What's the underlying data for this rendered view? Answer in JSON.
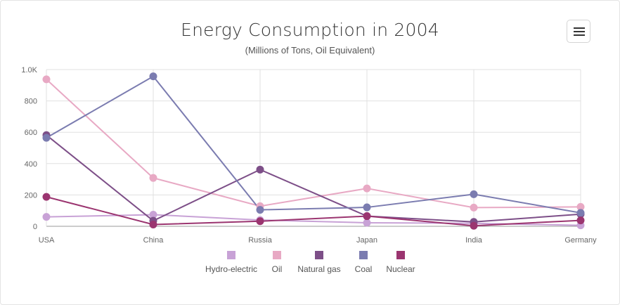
{
  "chart_data": {
    "type": "line",
    "title": "Energy Consumption in 2004",
    "subtitle": "(Millions of Tons, Oil Equivalent)",
    "categories": [
      "USA",
      "China",
      "Russia",
      "Japan",
      "India",
      "Germany"
    ],
    "ylim": [
      0,
      1000
    ],
    "yticks": [
      0,
      200,
      400,
      600,
      800,
      1000
    ],
    "ytick_labels": [
      "0",
      "200",
      "400",
      "600",
      "800",
      "1.0K"
    ],
    "xlabel": "",
    "ylabel": "",
    "grid": true,
    "legend_position": "bottom",
    "series": [
      {
        "name": "Hydro-electric",
        "color": "#c8a2d6",
        "values": [
          59.8,
          74.2,
          40,
          22.6,
          19,
          6.1
        ]
      },
      {
        "name": "Oil",
        "color": "#e8a9c4",
        "values": [
          937.6,
          308.6,
          128.5,
          241.5,
          119.3,
          123.6
        ]
      },
      {
        "name": "Natural gas",
        "color": "#7d4f88",
        "values": [
          582,
          35.1,
          361.8,
          64.8,
          27.9,
          77.3
        ]
      },
      {
        "name": "Coal",
        "color": "#7b7cb0",
        "values": [
          564.3,
          956.9,
          105,
          120.8,
          204.8,
          85.7
        ]
      },
      {
        "name": "Nuclear",
        "color": "#9b3570",
        "values": [
          187.9,
          11.3,
          32.4,
          64.8,
          3.4,
          37.8
        ]
      }
    ]
  },
  "toolbar": {
    "menu_icon": "hamburger-menu-icon"
  }
}
